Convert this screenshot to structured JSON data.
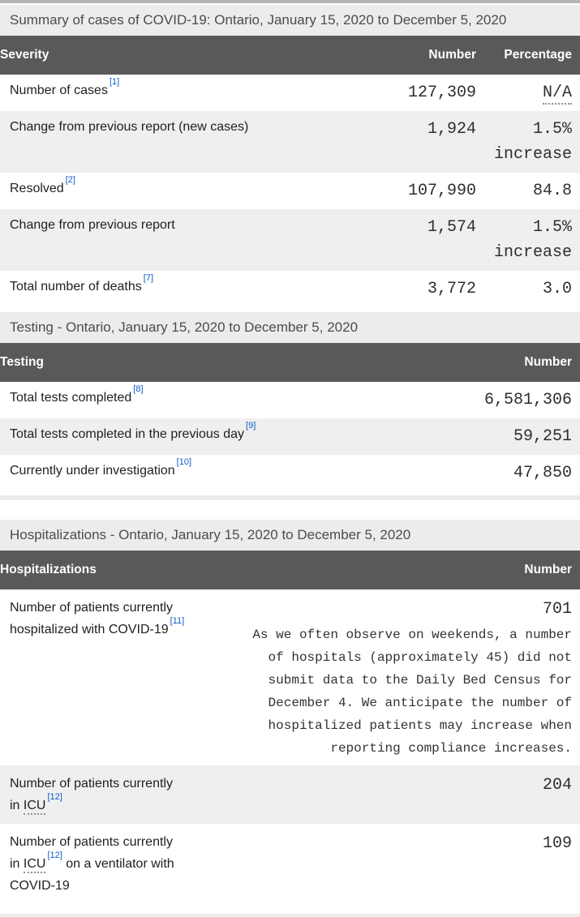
{
  "theme": {
    "header_bg": "#595959",
    "caption_bg": "#ececec",
    "stripe_bg": "#efefef",
    "top_strip": "#b3b3b3",
    "text_color": "#212121",
    "caption_text": "#4c4c4c",
    "mono_text": "#2e2e2e",
    "link_color": "#0d5cc9"
  },
  "tables": {
    "summary": {
      "caption": "Summary of cases of COVID-19: Ontario, January 15, 2020 to December 5, 2020",
      "columns": {
        "c1": "Severity",
        "c2": "Number",
        "c3": "Percentage"
      },
      "rows": [
        {
          "label": "Number of cases",
          "footnote": "[1]",
          "number": "127,309",
          "pct": "N/A"
        },
        {
          "label": "Change from previous report (new cases)",
          "number": "1,924",
          "pct": "1.5% increase"
        },
        {
          "label": "Resolved",
          "footnote": "[2]",
          "number": "107,990",
          "pct": "84.8"
        },
        {
          "label": "Change from previous report",
          "number": "1,574",
          "pct": "1.5% increase"
        },
        {
          "label": "Total number of deaths",
          "footnote": "[7]",
          "number": "3,772",
          "pct": "3.0"
        }
      ]
    },
    "testing": {
      "caption": "Testing - Ontario, January 15, 2020 to December 5, 2020",
      "columns": {
        "c1": "Testing",
        "c2": "Number"
      },
      "rows": [
        {
          "label": "Total tests completed",
          "footnote": "[8]",
          "number": "6,581,306"
        },
        {
          "label": "Total tests completed in the previous day",
          "footnote": "[9]",
          "number": "59,251"
        },
        {
          "label": "Currently under investigation",
          "footnote": "[10]",
          "number": "47,850"
        }
      ]
    },
    "hospitalizations": {
      "caption": "Hospitalizations - Ontario, January 15, 2020 to December 5, 2020",
      "columns": {
        "c1": "Hospitalizations",
        "c2": "Number"
      },
      "rows": [
        {
          "label": "Number of patients currently\nhospitalized with COVID-19",
          "footnote": "[11]",
          "number": "701",
          "note": "As we often observe on weekends, a number of hospitals (approximately 45) did not submit data to the Daily Bed Census for December 4. We anticipate the number of hospitalized patients may increase when reporting compliance increases."
        },
        {
          "label": "Number of patients currently\nin ",
          "abbr": "ICU",
          "footnote": "[12]",
          "number": "204"
        },
        {
          "label": "Number of patients currently\nin ",
          "abbr": "ICU",
          "footnote": "[12]",
          "label_post": " on a ventilator with\nCOVID-19",
          "number": "109"
        }
      ]
    }
  }
}
